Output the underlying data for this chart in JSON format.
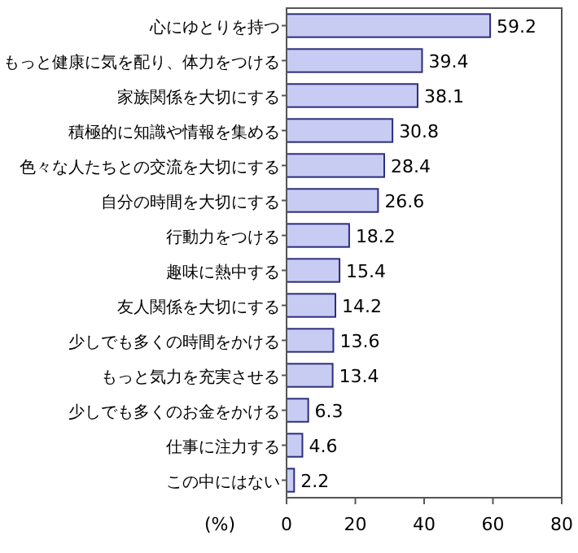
{
  "chart_data": {
    "type": "bar",
    "orientation": "horizontal",
    "xlabel": "(%)",
    "categories": [
      "心にゆとりを持つ",
      "もっと健康に気を配り、体力をつける",
      "家族関係を大切にする",
      "積極的に知識や情報を集める",
      "色々な人たちとの交流を大切にする",
      "自分の時間を大切にする",
      "行動力をつける",
      "趣味に熱中する",
      "友人関係を大切にする",
      "少しでも多くの時間をかける",
      "もっと気力を充実させる",
      "少しでも多くのお金をかける",
      "仕事に注力する",
      "この中にはない"
    ],
    "values": [
      59.2,
      39.4,
      38.1,
      30.8,
      28.4,
      26.6,
      18.2,
      15.4,
      14.2,
      13.6,
      13.4,
      6.3,
      4.6,
      2.2
    ],
    "color": "#c8ccf2",
    "xlim": [
      0,
      80
    ],
    "xticks": [
      0,
      20,
      40,
      60,
      80
    ],
    "data_labels": true,
    "grid": false
  }
}
